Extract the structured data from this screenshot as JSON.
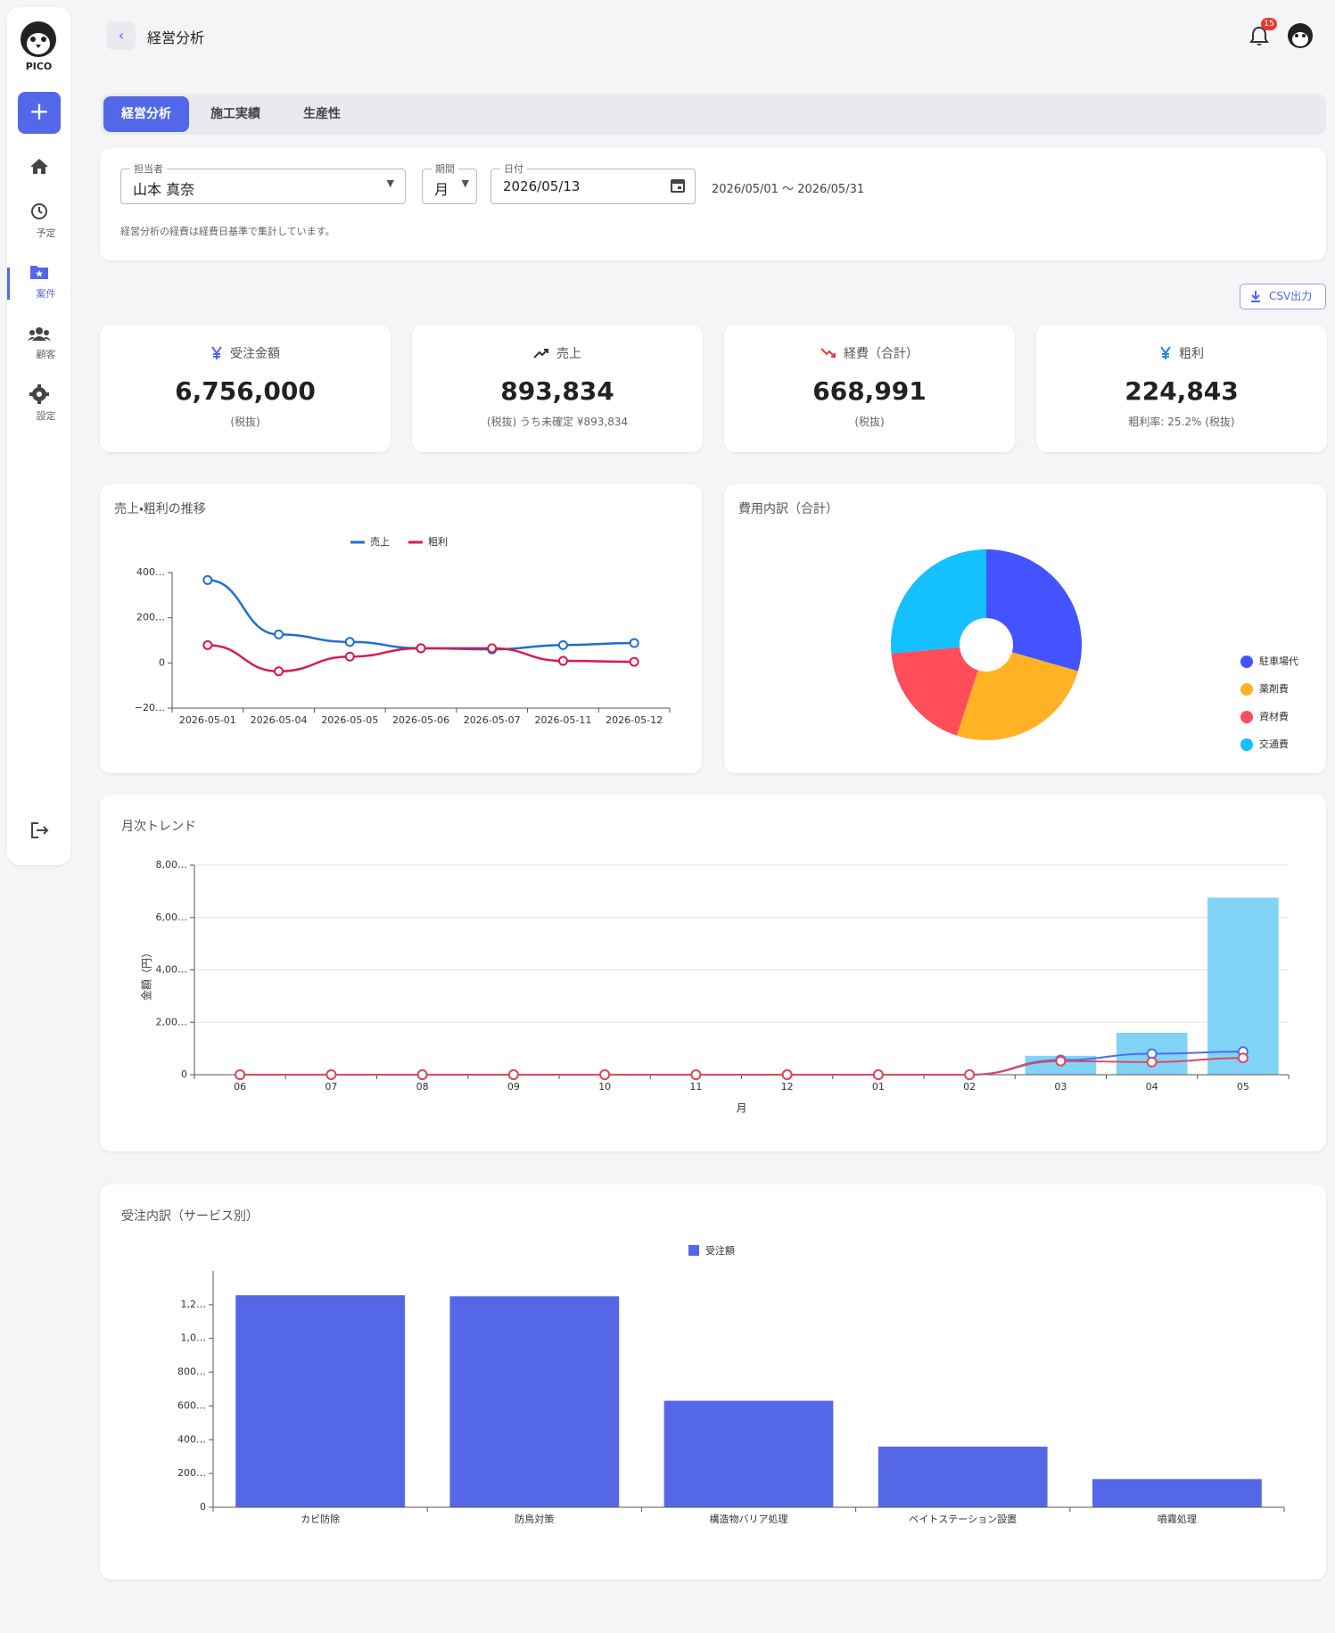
{
  "header": {
    "title": "経営分析",
    "notifications": 15
  },
  "sidebar": {
    "logo": "PICO",
    "nav": [
      "予定",
      "案件",
      "顧客",
      "設定"
    ]
  },
  "tabs": [
    "経営分析",
    "施工実績",
    "生産性"
  ],
  "filters": {
    "assignee": {
      "label": "担当者",
      "value": "山本 真奈"
    },
    "period": {
      "label": "期間",
      "value": "月"
    },
    "date": {
      "label": "日付",
      "value": "2026/05/13"
    },
    "range": "2026/05/01 〜 2026/05/31",
    "note": "経営分析の経費は経費日基準で集計しています。"
  },
  "csv_button": "CSV出力",
  "kpis": [
    {
      "label": "受注金額",
      "value": "6,756,000",
      "sub": "(税抜)"
    },
    {
      "label": "売上",
      "value": "893,834",
      "sub": "(税抜) うち未確定 ¥893,834"
    },
    {
      "label": "経費（合計）",
      "value": "668,991",
      "sub": "(税抜)"
    },
    {
      "label": "粗利",
      "value": "224,843",
      "sub": "粗利率: 25.2% (税抜)"
    }
  ],
  "chart_data": [
    {
      "type": "line",
      "title": "売上・粗利の推移",
      "categories": [
        "2026-05-01",
        "2026-05-04",
        "2026-05-05",
        "2026-05-06",
        "2026-05-07",
        "2026-05-11",
        "2026-05-12"
      ],
      "series": [
        {
          "name": "売上",
          "color": "#1f6fd1",
          "values": [
            367000,
            126000,
            93000,
            65000,
            60000,
            79000,
            88000
          ]
        },
        {
          "name": "粗利",
          "color": "#d81b4a",
          "values": [
            79000,
            -37000,
            28000,
            65000,
            65000,
            9000,
            5000
          ]
        }
      ],
      "ylim": [
        -200000,
        400000
      ],
      "yticks": [
        {
          "value": 400000,
          "label": "400…"
        },
        {
          "value": 200000,
          "label": "200…"
        },
        0,
        {
          "value": -200000,
          "label": "−20…"
        }
      ],
      "grid": false
    },
    {
      "type": "pie",
      "title": "費用内訳（合計）",
      "categories": [
        "駐車場代",
        "薬剤費",
        "資材費",
        "交通費"
      ],
      "values": [
        197000,
        171000,
        124000,
        177000
      ],
      "colors": [
        "#4353ff",
        "#ffb224",
        "#ff4d5a",
        "#14c0ff"
      ],
      "legend": "right"
    },
    {
      "type": "combo",
      "title": "月次トレンド",
      "ylabel": "金額（円）",
      "xlabel": "月",
      "categories": [
        "06",
        "07",
        "08",
        "09",
        "10",
        "11",
        "12",
        "01",
        "02",
        "03",
        "04",
        "05"
      ],
      "series": [
        {
          "kind": "bar",
          "color": "#81d4f5",
          "values": [
            0,
            0,
            0,
            0,
            0,
            0,
            0,
            0,
            0,
            720000,
            1600000,
            6756000
          ]
        },
        {
          "kind": "line",
          "color": "#4c6ef5",
          "values": [
            0,
            0,
            0,
            0,
            0,
            0,
            0,
            0,
            0,
            560000,
            800000,
            880000
          ]
        },
        {
          "kind": "line",
          "color": "#e04858",
          "values": [
            0,
            0,
            0,
            0,
            0,
            0,
            0,
            0,
            0,
            520000,
            480000,
            640000
          ]
        }
      ],
      "ylim": [
        0,
        8000000
      ],
      "yticks": [
        0,
        {
          "value": 2000000,
          "label": "2,00…"
        },
        {
          "value": 4000000,
          "label": "4,00…"
        },
        {
          "value": 6000000,
          "label": "6,00…"
        },
        {
          "value": 8000000,
          "label": "8,00…"
        }
      ],
      "grid": true
    },
    {
      "type": "bar",
      "title": "受注内訳（サービス別）",
      "categories": [
        "カビ防除",
        "防鳥対策",
        "構造物バリア処理",
        "ベイトステーション設置",
        "噴霧処理"
      ],
      "series": [
        {
          "name": "受注額",
          "color": "#5468e7",
          "values": [
            1256000,
            1250000,
            631000,
            359000,
            167000
          ]
        }
      ],
      "ylim": [
        0,
        1400000
      ],
      "yticks": [
        0,
        {
          "value": 200000,
          "label": "200…"
        },
        {
          "value": 400000,
          "label": "400…"
        },
        {
          "value": 600000,
          "label": "600…"
        },
        {
          "value": 800000,
          "label": "800…"
        },
        {
          "value": 1000000,
          "label": "1,0…"
        },
        {
          "value": 1200000,
          "label": "1,2…"
        }
      ],
      "grid": false
    }
  ]
}
